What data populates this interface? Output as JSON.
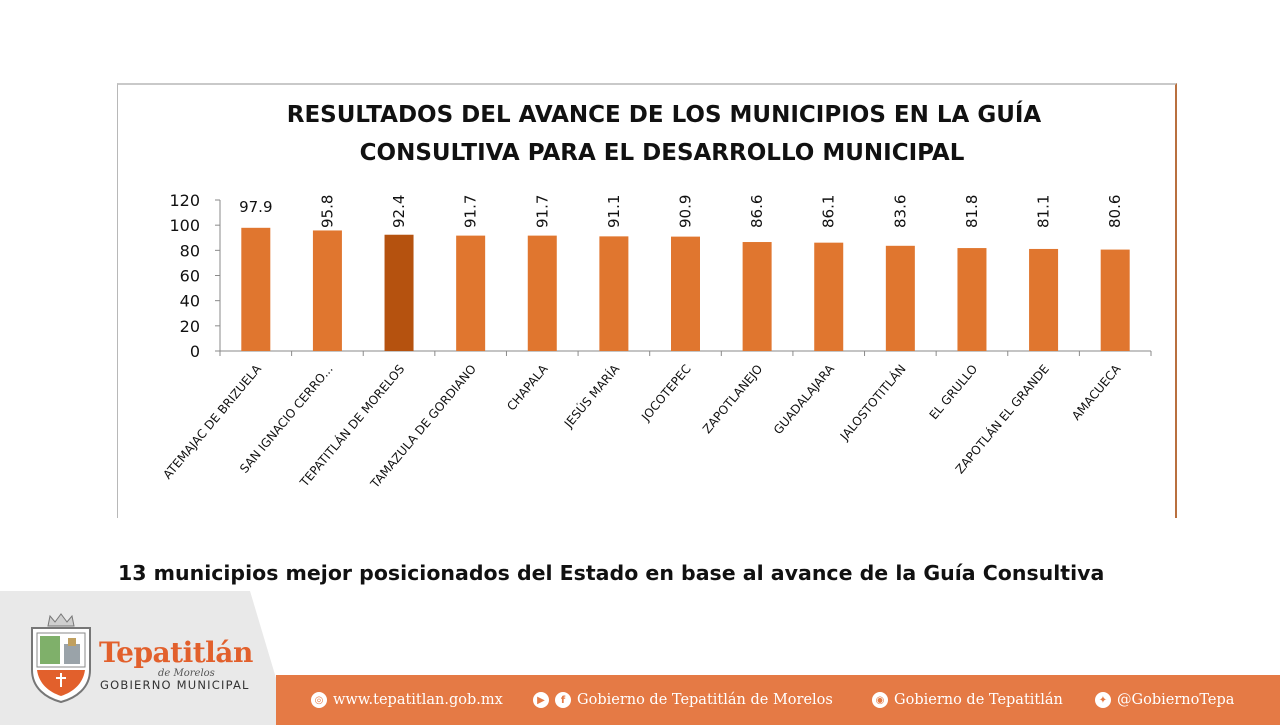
{
  "chart_data": {
    "type": "bar",
    "title_lines": [
      "RESULTADOS DEL AVANCE DE LOS MUNICIPIOS EN LA GUÍA",
      "CONSULTIVA PARA EL DESARROLLO MUNICIPAL"
    ],
    "categories": [
      "ATEMAJAC DE BRIZUELA",
      "SAN IGNACIO CERRO...",
      "TEPATITLÁN DE MORELOS",
      "TAMAZULA DE GORDIANO",
      "CHAPALA",
      "JESÚS MARÍA",
      "JOCOTEPEC",
      "ZAPOTLANEJO",
      "GUADALAJARA",
      "JALOSTOTITLÁN",
      "EL GRULLO",
      "ZAPOTLÁN EL GRANDE",
      "AMACUECA"
    ],
    "values": [
      97.9,
      95.8,
      92.4,
      91.7,
      91.7,
      91.1,
      90.9,
      86.6,
      86.1,
      83.6,
      81.8,
      81.1,
      80.6
    ],
    "value_labels": [
      "97.9",
      "95.8",
      "92.4",
      "91.7",
      "91.7",
      "91.1",
      "90.9",
      "86.6",
      "86.1",
      "83.6",
      "81.8",
      "81.1",
      "80.6"
    ],
    "highlight_index": 2,
    "ylim": [
      0,
      120
    ],
    "yticks": [
      "0",
      "20",
      "40",
      "60",
      "80",
      "100",
      "120"
    ],
    "grid": false,
    "bar_color": "#e0762f",
    "highlight_color": "#b5520f"
  },
  "caption": "13 municipios mejor posicionados del Estado en base al avance de la Guía Consultiva",
  "brand": {
    "name": "Tepatitlán",
    "subtitle": "de Morelos",
    "government": "GOBIERNO MUNICIPAL",
    "accent_color": "#e57a45"
  },
  "footer": {
    "website": "www.tepatitlan.gob.mx",
    "facebook": "Gobierno de Tepatitlán de Morelos",
    "instagram": "Gobierno de Tepatitlán",
    "twitter": "@GobiernoTepa",
    "icons": [
      "globe-icon",
      "youtube-icon",
      "facebook-icon",
      "instagram-icon",
      "twitter-icon"
    ]
  }
}
